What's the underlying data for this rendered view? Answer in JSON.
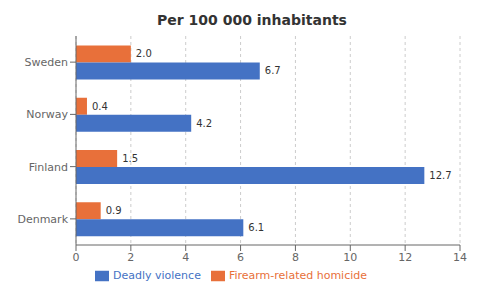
{
  "chart_data": {
    "type": "bar",
    "orientation": "horizontal",
    "title": "Per 100 000 inhabitants",
    "categories": [
      "Sweden",
      "Norway",
      "Finland",
      "Denmark"
    ],
    "series": [
      {
        "name": "Firearm-related homicide",
        "color": "#E8703A",
        "values": [
          2.0,
          0.4,
          1.5,
          0.9
        ],
        "value_labels": [
          "2.0",
          "0.4",
          "1.5",
          "0.9"
        ]
      },
      {
        "name": "Deadly violence",
        "color": "#4472C4",
        "values": [
          6.7,
          4.2,
          12.7,
          6.1
        ],
        "value_labels": [
          "6.7",
          "4.2",
          "12.7",
          "6.1"
        ]
      }
    ],
    "xlim": [
      0,
      14
    ],
    "xticks": [
      0,
      2,
      4,
      6,
      8,
      10,
      12,
      14
    ],
    "grid": true,
    "legend": "bottom",
    "data_labels": true
  }
}
